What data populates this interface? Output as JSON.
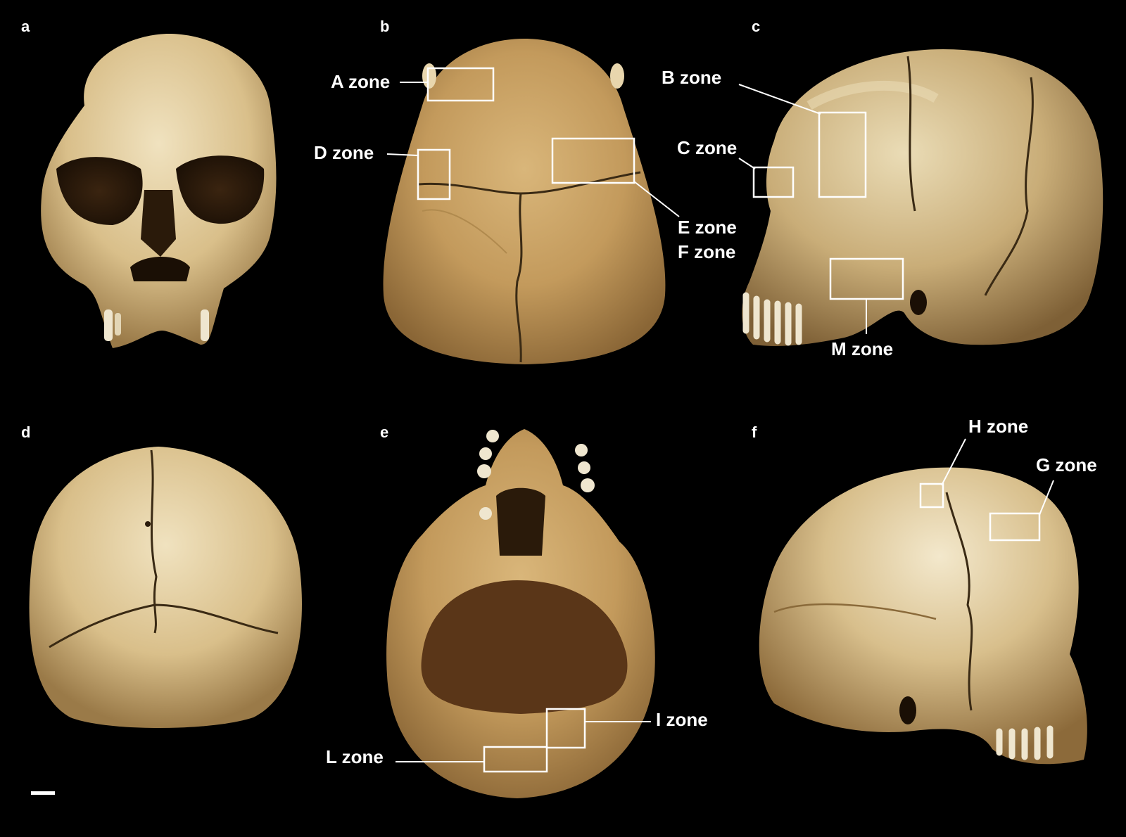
{
  "panels": {
    "a": {
      "letter": "a"
    },
    "b": {
      "letter": "b"
    },
    "c": {
      "letter": "c"
    },
    "d": {
      "letter": "d"
    },
    "e": {
      "letter": "e"
    },
    "f": {
      "letter": "f"
    }
  },
  "zones": {
    "A": "A zone",
    "B": "B zone",
    "C": "C zone",
    "D": "D zone",
    "E": "E zone",
    "F": "F zone",
    "G": "G zone",
    "H": "H zone",
    "I": "I zone",
    "L": "L zone",
    "M": "M zone"
  },
  "colors": {
    "background": "#000000",
    "bone_light": "#e8d6ad",
    "bone_mid": "#cdb07a",
    "bone_dark": "#8a6a3a",
    "annotation": "#ffffff"
  }
}
